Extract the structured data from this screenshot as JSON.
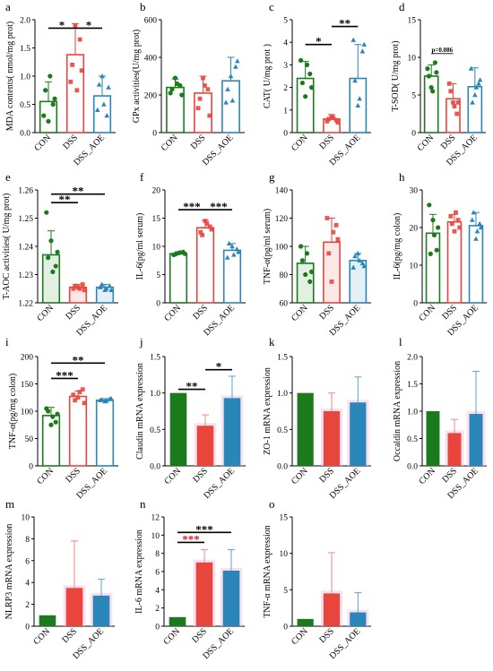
{
  "colors": {
    "con": "#1b7a1b",
    "dss": "#e8453c",
    "aoe": "#2a86b8",
    "sig": "#000000",
    "pink": "#f7c6e3"
  },
  "x_categories": [
    "CON",
    "DSS",
    "DSS_AOE"
  ],
  "chart_data": [
    {
      "label": "a",
      "type": "bar",
      "ylabel": "MDA contents( nmol/mg prot)",
      "ylim": [
        0,
        2.0
      ],
      "ticks": [
        "0.0",
        "0.5",
        "1.0",
        "1.5",
        "2.0"
      ],
      "tick_values": [
        0,
        0.5,
        1,
        1.5,
        2
      ],
      "style": "outline",
      "values": [
        0.55,
        1.38,
        0.65
      ],
      "errors": [
        0.35,
        0.55,
        0.35
      ],
      "points": [
        [
          0.3,
          0.2,
          0.5,
          0.75,
          1.0,
          0.6
        ],
        [
          0.9,
          1.9,
          1.65,
          1.2,
          0.75,
          1.1
        ],
        [
          0.4,
          1.0,
          0.3,
          0.85,
          0.5,
          0.8
        ]
      ],
      "sig": [
        {
          "from": 0,
          "to": 1,
          "label": "*",
          "y": 1.85
        },
        {
          "from": 1,
          "to": 2,
          "label": "*",
          "y": 1.85
        }
      ]
    },
    {
      "label": "b",
      "type": "bar",
      "ylabel": "GPx activities(U/mg prot)",
      "ylim": [
        0,
        600
      ],
      "ticks": [
        "0",
        "200",
        "400",
        "600"
      ],
      "tick_values": [
        0,
        200,
        400,
        600
      ],
      "style": "outline",
      "values": [
        240,
        210,
        275
      ],
      "errors": [
        45,
        90,
        125
      ],
      "points": [
        [
          210,
          290,
          250,
          230,
          260,
          200
        ],
        [
          130,
          290,
          230,
          180,
          250,
          90
        ],
        [
          160,
          300,
          350,
          230,
          170,
          380
        ]
      ],
      "sig": []
    },
    {
      "label": "c",
      "type": "bar",
      "ylabel": "CAT( U/mg prot )",
      "ylim": [
        0,
        5
      ],
      "ticks": [
        "0",
        "1",
        "2",
        "3",
        "4",
        "5"
      ],
      "tick_values": [
        0,
        1,
        2,
        3,
        4,
        5
      ],
      "style": "outline",
      "values": [
        2.4,
        0.6,
        2.4
      ],
      "errors": [
        0.75,
        0.2,
        1.5
      ],
      "points": [
        [
          3.2,
          1.6,
          2.6,
          2.2,
          3.0,
          2.0
        ],
        [
          0.5,
          0.7,
          0.55,
          0.6,
          0.65,
          0.45
        ],
        [
          4.1,
          1.2,
          3.6,
          2.3,
          1.5,
          3.9
        ]
      ],
      "sig": [
        {
          "from": 0,
          "to": 1,
          "label": "*",
          "y": 3.9
        },
        {
          "from": 1,
          "to": 2,
          "label": "**",
          "y": 4.7
        }
      ]
    },
    {
      "label": "d",
      "type": "bar",
      "ylabel": "T-SOD( U/mg prot)",
      "ylim": [
        0,
        15
      ],
      "ticks": [
        "0",
        "5",
        "10",
        "15"
      ],
      "tick_values": [
        0,
        5,
        10,
        15
      ],
      "style": "outline",
      "values": [
        7.5,
        4.5,
        6.1
      ],
      "errors": [
        1.5,
        2.0,
        2.5
      ],
      "points": [
        [
          8.5,
          6.0,
          9.3,
          7.5,
          5.5,
          8.0
        ],
        [
          6.5,
          4.0,
          2.5,
          5.5,
          3.5,
          4.0
        ],
        [
          8.5,
          5.0,
          6.5,
          4.0,
          6.0,
          7.0
        ]
      ],
      "sig": [
        {
          "from": 0,
          "to": 1,
          "label": "p=0.086",
          "y": 10.5
        }
      ]
    },
    {
      "label": "e",
      "type": "bar",
      "ylabel": "T-AOC activities( U/mg prot)",
      "ylim": [
        1.22,
        1.26
      ],
      "ticks": [
        "1.22",
        "1.23",
        "1.24",
        "1.25",
        "1.26"
      ],
      "tick_values": [
        1.22,
        1.23,
        1.24,
        1.25,
        1.26
      ],
      "style": "fill",
      "values": [
        1.237,
        1.2255,
        1.2255
      ],
      "errors": [
        0.0085,
        0.001,
        0.001
      ],
      "points": [
        [
          1.252,
          1.242,
          1.233,
          1.236,
          1.231,
          1.238
        ],
        [
          1.225,
          1.2255,
          1.2265,
          1.226,
          1.225,
          1.2245
        ],
        [
          1.2255,
          1.2245,
          1.226,
          1.2265,
          1.225,
          1.2245
        ]
      ],
      "sig": [
        {
          "from": 0,
          "to": 1,
          "label": "**",
          "y": 1.2555
        },
        {
          "from": 0,
          "to": 2,
          "label": "**",
          "y": 1.2585
        }
      ]
    },
    {
      "label": "f",
      "type": "bar",
      "ylabel": "IL-6(pg/ml serum)",
      "ylim": [
        0,
        20
      ],
      "ticks": [
        "0",
        "5",
        "10",
        "15",
        "20"
      ],
      "tick_values": [
        0,
        5,
        10,
        15,
        20
      ],
      "style": "outline",
      "values": [
        8.7,
        13.3,
        9.3
      ],
      "errors": [
        0.35,
        1.3,
        1.2
      ],
      "points": [
        [
          8.5,
          8.8,
          9.0,
          8.6,
          8.9,
          8.7
        ],
        [
          12.5,
          14.5,
          13.5,
          12.0,
          14.0,
          13.0
        ],
        [
          8.0,
          10.0,
          9.5,
          10.5,
          8.5,
          9.0
        ]
      ],
      "sig": [
        {
          "from": 0,
          "to": 1,
          "label": "***",
          "y": 16.5
        },
        {
          "from": 1,
          "to": 2,
          "label": "***",
          "y": 16.5
        }
      ]
    },
    {
      "label": "g",
      "type": "bar",
      "ylabel": "TNF-α(pg/ml serum)",
      "ylim": [
        60,
        140
      ],
      "ticks": [
        "60",
        "80",
        "100",
        "120",
        "140"
      ],
      "tick_values": [
        60,
        80,
        100,
        120,
        140
      ],
      "style": "fill",
      "values": [
        88,
        103,
        90
      ],
      "errors": [
        12,
        17,
        5
      ],
      "points": [
        [
          100,
          80,
          75,
          90,
          95,
          82
        ],
        [
          120,
          75,
          115,
          95,
          110,
          105
        ],
        [
          85,
          95,
          88,
          93,
          90,
          86
        ]
      ],
      "sig": []
    },
    {
      "label": "h",
      "type": "bar",
      "ylabel": "IL-6(pg/mg colon)",
      "ylim": [
        0,
        30
      ],
      "ticks": [
        "0",
        "10",
        "20",
        "30"
      ],
      "tick_values": [
        0,
        10,
        20,
        30
      ],
      "style": "outline",
      "values": [
        18.5,
        21.5,
        20.5
      ],
      "errors": [
        5,
        2,
        3.5
      ],
      "points": [
        [
          26,
          22,
          14,
          13,
          18,
          20
        ],
        [
          23,
          19,
          22,
          21,
          24,
          20
        ],
        [
          22,
          17,
          21,
          24,
          19,
          20
        ]
      ],
      "sig": []
    },
    {
      "label": "i",
      "type": "bar",
      "ylabel": "TNF-α(pg/mg colon)",
      "ylim": [
        0,
        200
      ],
      "ticks": [
        "0",
        "50",
        "100",
        "150",
        "200"
      ],
      "tick_values": [
        0,
        50,
        100,
        150,
        200
      ],
      "style": "outline",
      "values": [
        92,
        127,
        120
      ],
      "errors": [
        15,
        10,
        3
      ],
      "points": [
        [
          105,
          75,
          80,
          100,
          90,
          95
        ],
        [
          130,
          125,
          140,
          120,
          135,
          115
        ],
        [
          120,
          118,
          122,
          121,
          119,
          123
        ]
      ],
      "sig": [
        {
          "from": 0,
          "to": 1,
          "label": "***",
          "y": 160
        },
        {
          "from": 0,
          "to": 2,
          "label": "**",
          "y": 188
        }
      ]
    },
    {
      "label": "j",
      "type": "bar",
      "ylabel": "Claudin mRNA expression",
      "ylim": [
        0,
        1.5
      ],
      "ticks": [
        "0.0",
        "0.5",
        "1.0",
        "1.5"
      ],
      "tick_values": [
        0,
        0.5,
        1,
        1.5
      ],
      "style": "solid",
      "values": [
        1.0,
        0.55,
        0.93
      ],
      "errors": [
        0,
        0.15,
        0.3
      ],
      "points": [],
      "sig": [
        {
          "from": 0,
          "to": 1,
          "label": "**",
          "y": 1.05
        },
        {
          "from": 1,
          "to": 2,
          "label": "*",
          "y": 1.32
        }
      ]
    },
    {
      "label": "k",
      "type": "bar",
      "ylabel": "ZO-1 mRNA expression",
      "ylim": [
        0,
        1.5
      ],
      "ticks": [
        "0.0",
        "0.5",
        "1.0",
        "1.5"
      ],
      "tick_values": [
        0,
        0.5,
        1,
        1.5
      ],
      "style": "solid",
      "values": [
        1.0,
        0.75,
        0.87
      ],
      "errors": [
        0,
        0.25,
        0.35
      ],
      "points": [],
      "sig": []
    },
    {
      "label": "l",
      "type": "bar",
      "ylabel": "Occaldin mRNA expression",
      "ylim": [
        0,
        2.0
      ],
      "ticks": [
        "0.0",
        "0.5",
        "1.0",
        "1.5",
        "2.0"
      ],
      "tick_values": [
        0,
        0.5,
        1,
        1.5,
        2
      ],
      "style": "solid",
      "values": [
        1.0,
        0.6,
        0.95
      ],
      "errors": [
        0,
        0.25,
        0.78
      ],
      "points": [],
      "sig": []
    },
    {
      "label": "m",
      "type": "bar",
      "ylabel": "NLRP3 mRNA expression",
      "ylim": [
        0,
        10
      ],
      "ticks": [
        "0",
        "2",
        "4",
        "6",
        "8",
        "10"
      ],
      "tick_values": [
        0,
        2,
        4,
        6,
        8,
        10
      ],
      "style": "solid",
      "values": [
        1.0,
        3.5,
        2.8
      ],
      "errors": [
        0,
        4.3,
        1.5
      ],
      "points": [],
      "sig": []
    },
    {
      "label": "n",
      "type": "bar",
      "ylabel": "IL-6 mRNA expression",
      "ylim": [
        0,
        12
      ],
      "ticks": [
        "0",
        "2",
        "4",
        "6",
        "8",
        "10",
        "12"
      ],
      "tick_values": [
        0,
        2,
        4,
        6,
        8,
        10,
        12
      ],
      "style": "solid",
      "values": [
        1.0,
        7.0,
        6.1
      ],
      "errors": [
        0,
        1.4,
        2.3
      ],
      "points": [],
      "sig": [
        {
          "from": 0,
          "to": 1,
          "label": "***",
          "y": 9.2
        },
        {
          "from": 0,
          "to": 2,
          "label": "***",
          "y": 10.3
        }
      ]
    },
    {
      "label": "o",
      "type": "bar",
      "ylabel": "TNF-α mRNA expression",
      "ylim": [
        0,
        15
      ],
      "ticks": [
        "0",
        "5",
        "10",
        "15"
      ],
      "tick_values": [
        0,
        5,
        10,
        15
      ],
      "style": "solid",
      "values": [
        1.0,
        4.5,
        1.9
      ],
      "errors": [
        0,
        5.6,
        2.7
      ],
      "points": [],
      "sig": []
    }
  ]
}
